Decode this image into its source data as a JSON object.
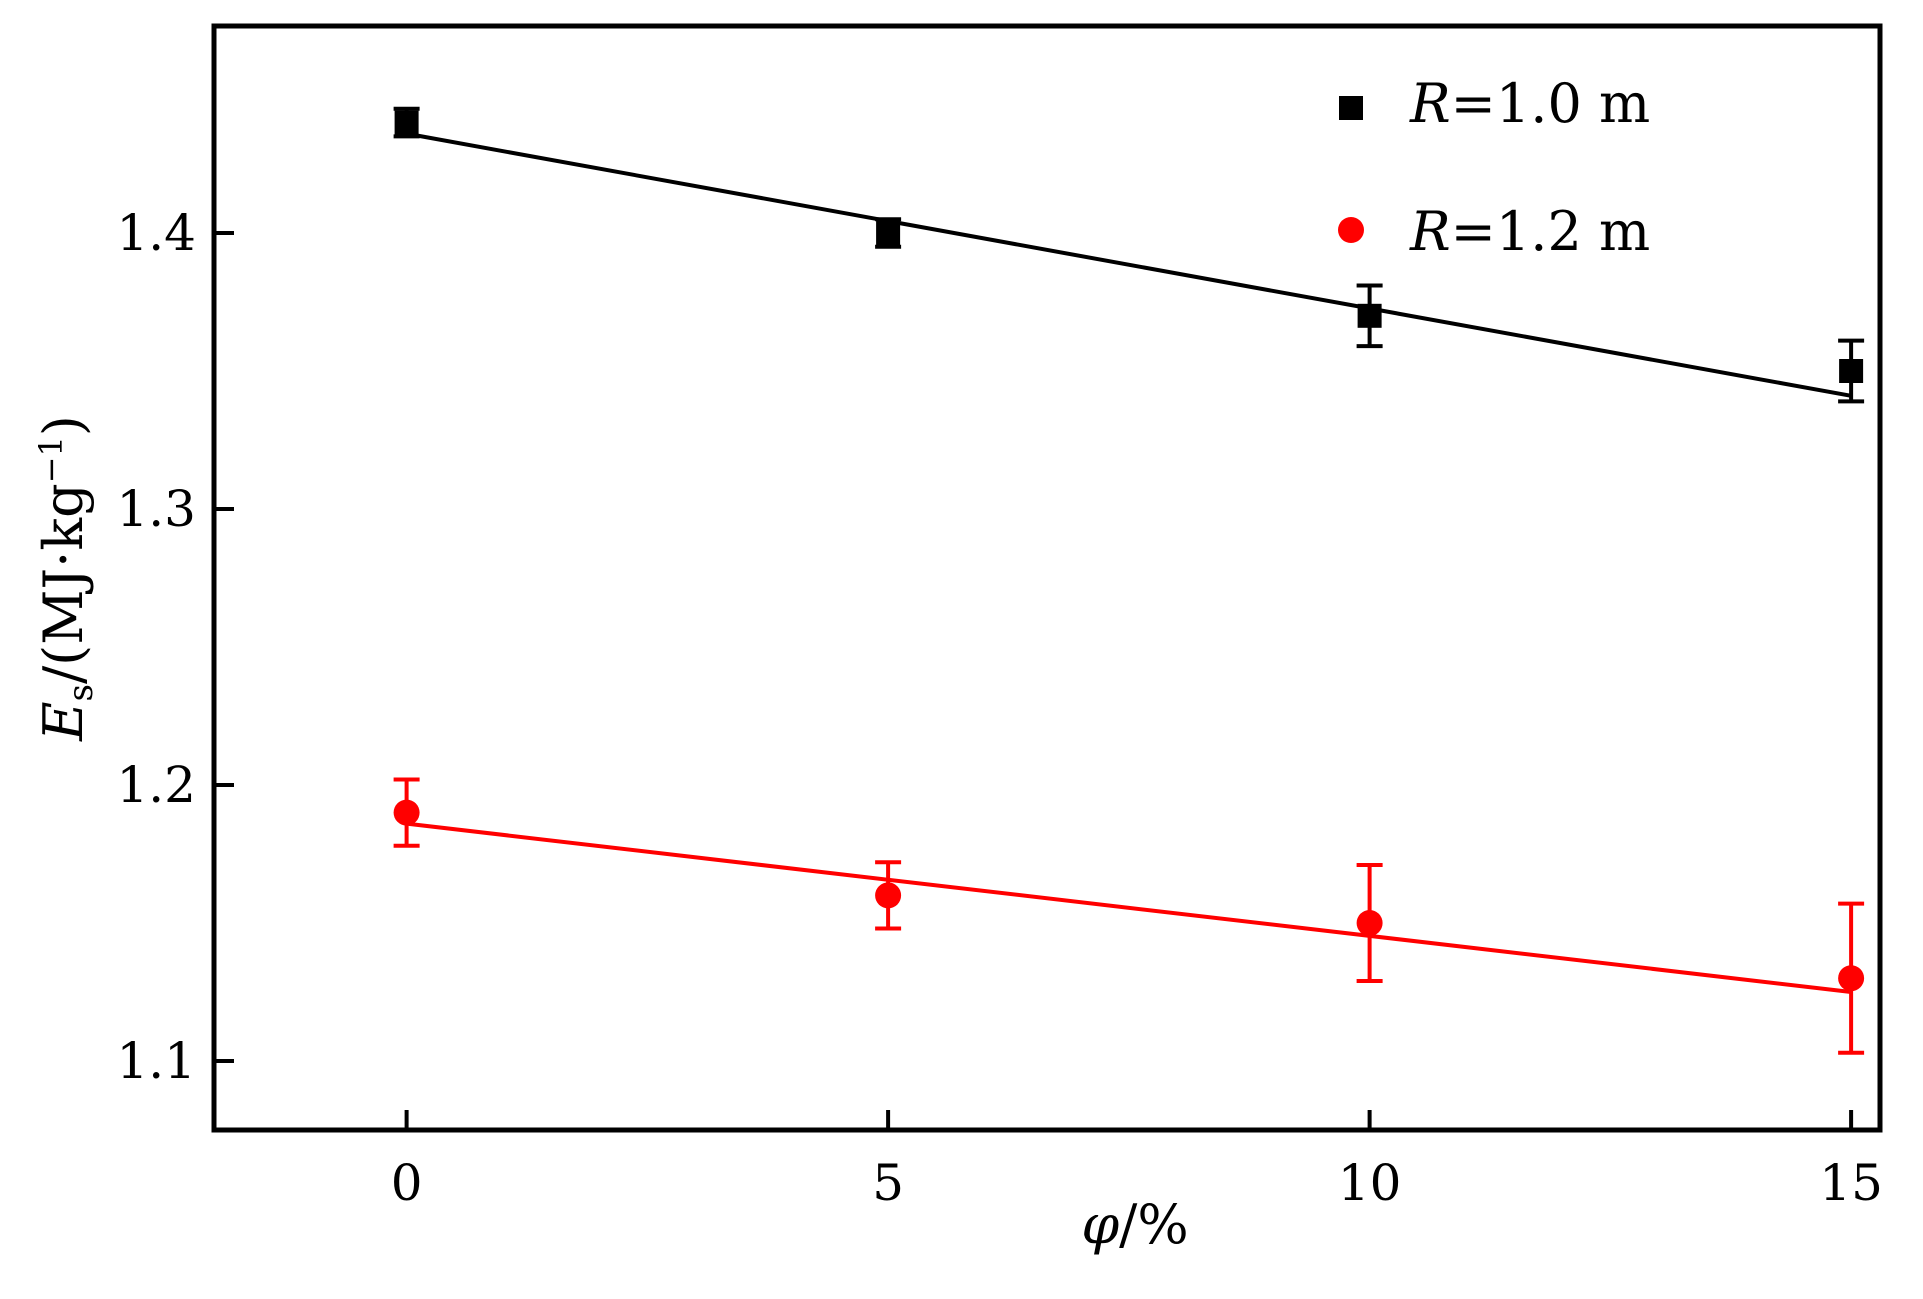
{
  "chart_data": {
    "type": "scatter",
    "title": "",
    "xlabel": {
      "symbol": "φ",
      "unit": "/%"
    },
    "ylabel": {
      "symbol": "E",
      "subscript": "s",
      "unit": "/(MJ·kg",
      "unit_exp": "−1",
      "unit_close": ")"
    },
    "xlim": [
      -2,
      15.3
    ],
    "ylim": [
      1.075,
      1.475
    ],
    "xticks": [
      0,
      5,
      10,
      15
    ],
    "xtick_labels": [
      "0",
      "5",
      "10",
      "15"
    ],
    "yticks": [
      1.1,
      1.2,
      1.3,
      1.4
    ],
    "ytick_labels": [
      "1.1",
      "1.2",
      "1.3",
      "1.4"
    ],
    "grid": false,
    "legend_position": "top-right",
    "series": [
      {
        "name_symbol": "R",
        "name_value": "=1.0 m",
        "marker": "square",
        "color": "#000000",
        "x": [
          0,
          5,
          10,
          15
        ],
        "y": [
          1.44,
          1.4,
          1.37,
          1.35
        ],
        "yerr": [
          0.005,
          0.005,
          0.011,
          0.011
        ],
        "fit": {
          "x": [
            0,
            15
          ],
          "y": [
            1.436,
            1.341
          ]
        }
      },
      {
        "name_symbol": "R",
        "name_value": "=1.2 m",
        "marker": "circle",
        "color": "#ff0000",
        "x": [
          0,
          5,
          10,
          15
        ],
        "y": [
          1.19,
          1.16,
          1.15,
          1.13
        ],
        "yerr": [
          0.012,
          0.012,
          0.021,
          0.027
        ],
        "fit": {
          "x": [
            0,
            15
          ],
          "y": [
            1.186,
            1.125
          ]
        }
      }
    ]
  }
}
